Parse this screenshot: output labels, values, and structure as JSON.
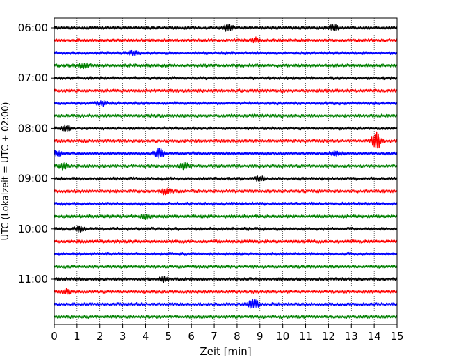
{
  "chart_data": {
    "type": "line",
    "title": "",
    "xlabel": "Zeit  [min]",
    "ylabel": "UTC (Lokalzeit = UTC + 02:00)",
    "xlim": [
      0,
      15
    ],
    "x_ticks": [
      "0",
      "1",
      "2",
      "3",
      "4",
      "5",
      "6",
      "7",
      "8",
      "9",
      "10",
      "11",
      "12",
      "13",
      "14",
      "15"
    ],
    "y_ticks": [
      "06:00",
      "07:00",
      "08:00",
      "09:00",
      "10:00",
      "11:00"
    ],
    "grid": "vertical dotted",
    "colors": [
      "#000000",
      "#ff0000",
      "#0000ff",
      "#008000"
    ],
    "minutes_per_row": 15,
    "series": [
      {
        "start": "06:00",
        "color": "#000000",
        "bursts": [
          {
            "t": 7.6,
            "amp": 4
          },
          {
            "t": 12.2,
            "amp": 4
          }
        ]
      },
      {
        "start": "06:15",
        "color": "#ff0000",
        "bursts": [
          {
            "t": 8.8,
            "amp": 3
          }
        ]
      },
      {
        "start": "06:30",
        "color": "#0000ff",
        "bursts": [
          {
            "t": 3.5,
            "amp": 3
          }
        ]
      },
      {
        "start": "06:45",
        "color": "#008000",
        "bursts": [
          {
            "t": 1.3,
            "amp": 3
          }
        ]
      },
      {
        "start": "07:00",
        "color": "#000000",
        "bursts": []
      },
      {
        "start": "07:15",
        "color": "#ff0000",
        "bursts": []
      },
      {
        "start": "07:30",
        "color": "#0000ff",
        "bursts": [
          {
            "t": 2.1,
            "amp": 3
          }
        ]
      },
      {
        "start": "07:45",
        "color": "#008000",
        "bursts": []
      },
      {
        "start": "08:00",
        "color": "#000000",
        "bursts": [
          {
            "t": 0.5,
            "amp": 4
          }
        ]
      },
      {
        "start": "08:15",
        "color": "#ff0000",
        "bursts": [
          {
            "t": 14.1,
            "amp": 12
          }
        ]
      },
      {
        "start": "08:30",
        "color": "#0000ff",
        "bursts": [
          {
            "t": 0.1,
            "amp": 4
          },
          {
            "t": 4.6,
            "amp": 6
          },
          {
            "t": 12.3,
            "amp": 3
          }
        ]
      },
      {
        "start": "08:45",
        "color": "#008000",
        "bursts": [
          {
            "t": 0.4,
            "amp": 4
          },
          {
            "t": 5.7,
            "amp": 5
          }
        ]
      },
      {
        "start": "09:00",
        "color": "#000000",
        "bursts": [
          {
            "t": 9.0,
            "amp": 3
          }
        ]
      },
      {
        "start": "09:15",
        "color": "#ff0000",
        "bursts": [
          {
            "t": 4.9,
            "amp": 4
          }
        ]
      },
      {
        "start": "09:30",
        "color": "#0000ff",
        "bursts": []
      },
      {
        "start": "09:45",
        "color": "#008000",
        "bursts": [
          {
            "t": 4.0,
            "amp": 3
          }
        ]
      },
      {
        "start": "10:00",
        "color": "#000000",
        "bursts": [
          {
            "t": 1.1,
            "amp": 3
          }
        ]
      },
      {
        "start": "10:15",
        "color": "#ff0000",
        "bursts": []
      },
      {
        "start": "10:30",
        "color": "#0000ff",
        "bursts": []
      },
      {
        "start": "10:45",
        "color": "#008000",
        "bursts": []
      },
      {
        "start": "11:00",
        "color": "#000000",
        "bursts": [
          {
            "t": 4.8,
            "amp": 3
          }
        ]
      },
      {
        "start": "11:15",
        "color": "#ff0000",
        "bursts": [
          {
            "t": 0.5,
            "amp": 3
          }
        ]
      },
      {
        "start": "11:30",
        "color": "#0000ff",
        "bursts": [
          {
            "t": 8.7,
            "amp": 8
          }
        ]
      },
      {
        "start": "11:45",
        "color": "#008000",
        "bursts": []
      }
    ]
  }
}
